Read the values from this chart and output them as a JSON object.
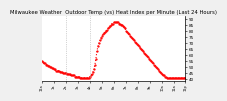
{
  "title": "Milwaukee Weather  Outdoor Temp (vs) Heat Index per Minute (Last 24 Hours)",
  "title_fontsize": 3.8,
  "background_color": "#f0f0f0",
  "plot_bg_color": "#ffffff",
  "line_color": "#ff0000",
  "line_style": "dotted",
  "line_width": 0.8,
  "marker_size": 1.2,
  "ylim": [
    38,
    92
  ],
  "yticks": [
    40,
    45,
    50,
    55,
    60,
    65,
    70,
    75,
    80,
    85,
    90
  ],
  "ytick_fontsize": 3.0,
  "xtick_fontsize": 2.5,
  "vline_positions": [
    24,
    48
  ],
  "vline_color": "#aaaaaa",
  "vline_style": "dotted",
  "y": [
    55,
    54,
    53,
    53,
    52,
    52,
    51,
    51,
    50,
    50,
    49,
    49,
    48,
    48,
    47,
    47,
    47,
    47,
    46,
    46,
    46,
    45,
    45,
    45,
    45,
    44,
    44,
    44,
    44,
    43,
    43,
    43,
    43,
    42,
    42,
    42,
    42,
    42,
    41,
    41,
    41,
    41,
    41,
    41,
    41,
    41,
    41,
    41,
    42,
    43,
    44,
    46,
    48,
    52,
    57,
    63,
    67,
    70,
    72,
    74,
    76,
    77,
    78,
    79,
    80,
    81,
    82,
    83,
    84,
    85,
    86,
    86,
    87,
    87,
    87,
    87,
    87,
    86,
    86,
    85,
    85,
    84,
    83,
    82,
    80,
    79,
    78,
    77,
    76,
    75,
    74,
    73,
    72,
    71,
    70,
    69,
    68,
    67,
    66,
    65,
    64,
    63,
    62,
    61,
    60,
    59,
    58,
    57,
    56,
    55,
    54,
    53,
    52,
    51,
    50,
    49,
    48,
    47,
    46,
    45,
    44,
    43,
    43,
    42,
    42,
    41,
    41,
    41,
    41,
    41,
    41,
    41,
    41,
    41,
    41,
    41,
    41,
    41,
    41,
    41,
    41,
    41,
    41,
    41
  ],
  "xtick_positions": [
    0,
    12,
    24,
    36,
    48,
    60,
    72,
    84,
    96,
    108,
    120,
    132,
    143
  ],
  "xtick_labels": [
    "12a",
    "1a",
    "2a",
    "3a",
    "4a",
    "5a",
    "6a",
    "7a",
    "8a",
    "9a",
    "10a",
    "11a",
    "12p"
  ]
}
